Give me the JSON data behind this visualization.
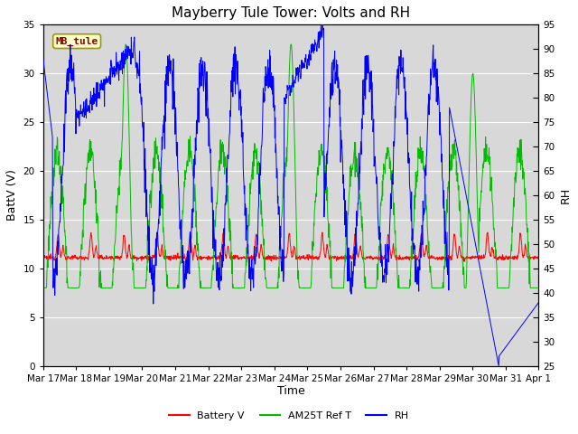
{
  "title": "Mayberry Tule Tower: Volts and RH",
  "xlabel": "Time",
  "ylabel_left": "BattV (V)",
  "ylabel_right": "RH",
  "ylim_left": [
    0,
    35
  ],
  "ylim_right": [
    25,
    95
  ],
  "yticks_left": [
    0,
    5,
    10,
    15,
    20,
    25,
    30,
    35
  ],
  "yticks_right": [
    25,
    30,
    35,
    40,
    45,
    50,
    55,
    60,
    65,
    70,
    75,
    80,
    85,
    90,
    95
  ],
  "station_label": "MB_tule",
  "station_label_color": "#8b0000",
  "station_box_facecolor": "#ffffcc",
  "station_box_edgecolor": "#999900",
  "bg_color": "#d8d8d8",
  "grid_color": "#ffffff",
  "battery_color": "#ff0000",
  "am25t_color": "#00bb00",
  "rh_color": "#0000ff",
  "legend_labels": [
    "Battery V",
    "AM25T Ref T",
    "RH"
  ],
  "xtick_labels": [
    "Mar 17",
    "Mar 18",
    "Mar 19",
    "Mar 20",
    "Mar 21",
    "Mar 22",
    "Mar 23",
    "Mar 24",
    "Mar 25",
    "Mar 26",
    "Mar 27",
    "Mar 28",
    "Mar 29",
    "Mar 30",
    "Mar 31",
    "Apr 1"
  ],
  "title_fontsize": 11,
  "axis_label_fontsize": 9,
  "tick_fontsize": 7.5,
  "legend_fontsize": 8
}
